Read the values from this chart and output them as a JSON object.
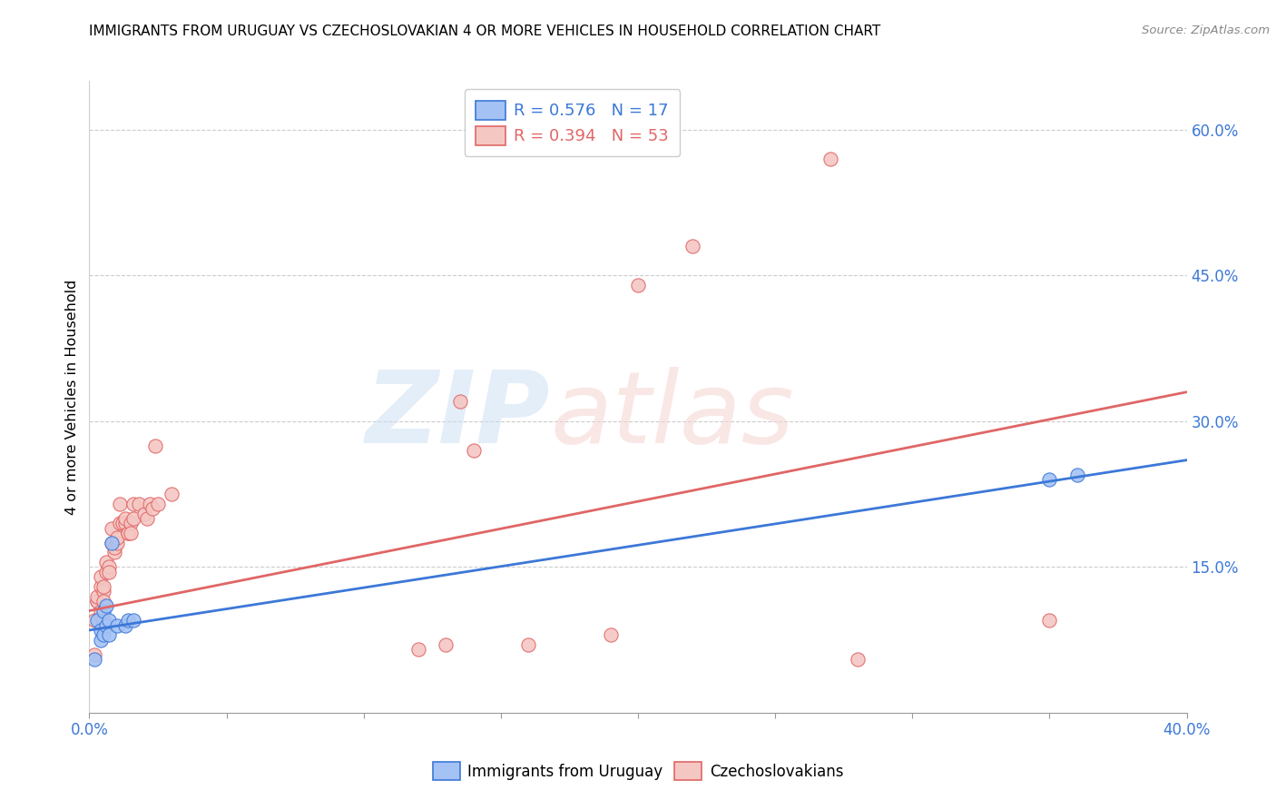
{
  "title": "IMMIGRANTS FROM URUGUAY VS CZECHOSLOVAKIAN 4 OR MORE VEHICLES IN HOUSEHOLD CORRELATION CHART",
  "source": "Source: ZipAtlas.com",
  "ylabel": "4 or more Vehicles in Household",
  "legend_blue_r": "R = 0.576",
  "legend_blue_n": "N = 17",
  "legend_pink_r": "R = 0.394",
  "legend_pink_n": "N = 53",
  "blue_color": "#a4c2f4",
  "pink_color": "#f4c7c3",
  "blue_line_color": "#3c78d8",
  "pink_line_color": "#e06666",
  "blue_scatter": [
    [
      0.002,
      0.055
    ],
    [
      0.003,
      0.095
    ],
    [
      0.004,
      0.085
    ],
    [
      0.004,
      0.075
    ],
    [
      0.005,
      0.08
    ],
    [
      0.005,
      0.105
    ],
    [
      0.006,
      0.11
    ],
    [
      0.006,
      0.09
    ],
    [
      0.007,
      0.095
    ],
    [
      0.007,
      0.08
    ],
    [
      0.008,
      0.175
    ],
    [
      0.01,
      0.09
    ],
    [
      0.013,
      0.09
    ],
    [
      0.014,
      0.095
    ],
    [
      0.016,
      0.095
    ],
    [
      0.35,
      0.24
    ],
    [
      0.36,
      0.245
    ]
  ],
  "pink_scatter": [
    [
      0.002,
      0.06
    ],
    [
      0.002,
      0.095
    ],
    [
      0.003,
      0.115
    ],
    [
      0.003,
      0.115
    ],
    [
      0.003,
      0.12
    ],
    [
      0.004,
      0.1
    ],
    [
      0.004,
      0.13
    ],
    [
      0.004,
      0.105
    ],
    [
      0.004,
      0.14
    ],
    [
      0.005,
      0.125
    ],
    [
      0.005,
      0.13
    ],
    [
      0.005,
      0.115
    ],
    [
      0.005,
      0.095
    ],
    [
      0.006,
      0.145
    ],
    [
      0.006,
      0.155
    ],
    [
      0.007,
      0.15
    ],
    [
      0.007,
      0.145
    ],
    [
      0.008,
      0.19
    ],
    [
      0.008,
      0.175
    ],
    [
      0.009,
      0.165
    ],
    [
      0.009,
      0.17
    ],
    [
      0.01,
      0.175
    ],
    [
      0.01,
      0.18
    ],
    [
      0.011,
      0.215
    ],
    [
      0.011,
      0.195
    ],
    [
      0.012,
      0.195
    ],
    [
      0.013,
      0.195
    ],
    [
      0.013,
      0.2
    ],
    [
      0.014,
      0.185
    ],
    [
      0.014,
      0.185
    ],
    [
      0.015,
      0.195
    ],
    [
      0.015,
      0.185
    ],
    [
      0.016,
      0.215
    ],
    [
      0.016,
      0.2
    ],
    [
      0.018,
      0.215
    ],
    [
      0.02,
      0.205
    ],
    [
      0.021,
      0.2
    ],
    [
      0.022,
      0.215
    ],
    [
      0.023,
      0.21
    ],
    [
      0.024,
      0.275
    ],
    [
      0.025,
      0.215
    ],
    [
      0.03,
      0.225
    ],
    [
      0.12,
      0.065
    ],
    [
      0.13,
      0.07
    ],
    [
      0.135,
      0.32
    ],
    [
      0.14,
      0.27
    ],
    [
      0.16,
      0.07
    ],
    [
      0.19,
      0.08
    ],
    [
      0.2,
      0.44
    ],
    [
      0.22,
      0.48
    ],
    [
      0.27,
      0.57
    ],
    [
      0.28,
      0.055
    ],
    [
      0.35,
      0.095
    ]
  ],
  "blue_line": [
    [
      0.0,
      0.085
    ],
    [
      0.4,
      0.26
    ]
  ],
  "pink_line": [
    [
      0.0,
      0.105
    ],
    [
      0.4,
      0.33
    ]
  ],
  "xlim": [
    0.0,
    0.4
  ],
  "ylim": [
    0.0,
    0.65
  ],
  "yticks": [
    0.15,
    0.3,
    0.45,
    0.6
  ],
  "ytick_labels": [
    "15.0%",
    "30.0%",
    "45.0%",
    "60.0%"
  ],
  "xtick_count": 9
}
